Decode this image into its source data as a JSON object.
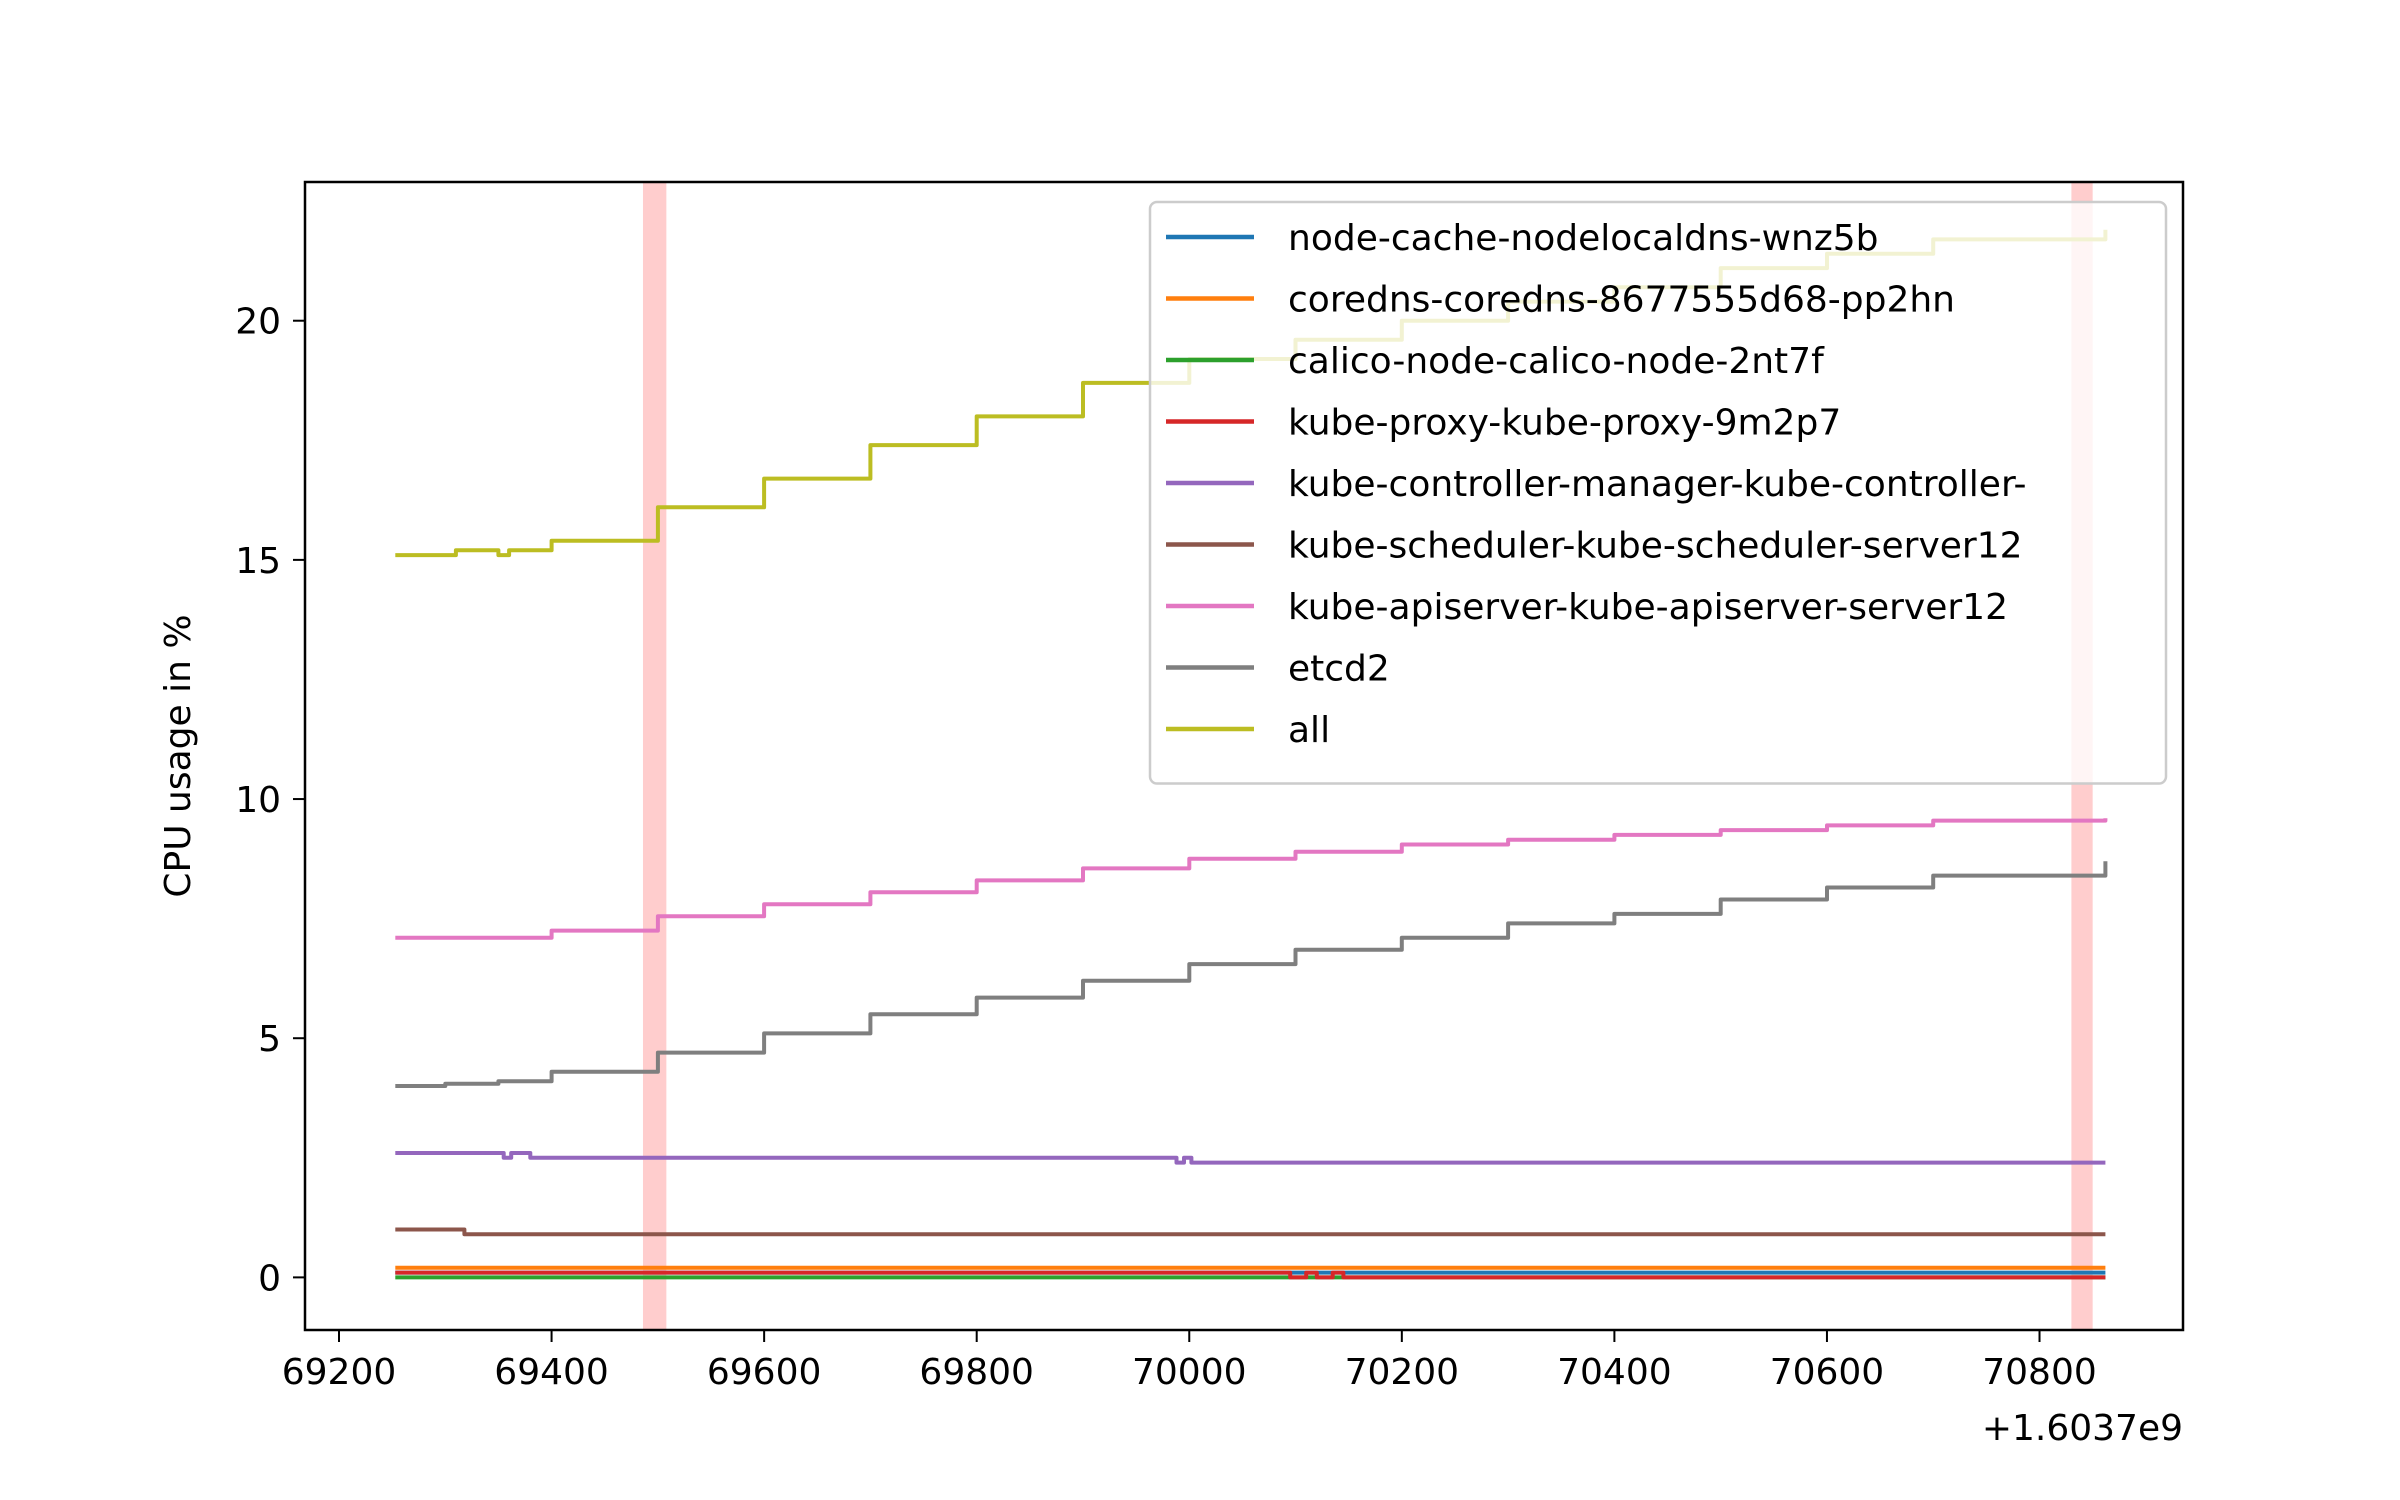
{
  "chart_data": {
    "type": "line",
    "title": "",
    "xlabel": "",
    "ylabel": "CPU usage in %",
    "x_offset_label": "+1.6037e9",
    "xlim": [
      69168,
      70935
    ],
    "ylim": [
      -1.1,
      22.9
    ],
    "x_ticks": [
      69200,
      69400,
      69600,
      69800,
      70000,
      70200,
      70400,
      70600,
      70800
    ],
    "y_ticks": [
      0,
      5,
      10,
      15,
      20
    ],
    "grid": false,
    "legend_position": "top-right",
    "highlight_bands": [
      {
        "x_start": 69486,
        "x_end": 69508,
        "color": "#ffbcbc"
      },
      {
        "x_start": 70830,
        "x_end": 70850,
        "color": "#ffbcbc"
      }
    ],
    "series": [
      {
        "name": "node-cache-nodelocaldns-wnz5b",
        "color": "#1f77b4",
        "x": [
          69253,
          70862
        ],
        "y": [
          0.1,
          0.1
        ]
      },
      {
        "name": "coredns-coredns-8677555d68-pp2hn",
        "color": "#ff7f0e",
        "x": [
          69253,
          70862
        ],
        "y": [
          0.2,
          0.2
        ]
      },
      {
        "name": "calico-node-calico-node-2nt7f",
        "color": "#2ca02c",
        "x": [
          69253,
          70862
        ],
        "y": [
          0.0,
          0.0
        ]
      },
      {
        "name": "kube-proxy-kube-proxy-9m2p7",
        "color": "#d62728",
        "x": [
          69253,
          70090,
          70095,
          70110,
          70120,
          70135,
          70145,
          70862
        ],
        "y": [
          0.1,
          0.1,
          0.0,
          0.1,
          0.0,
          0.1,
          0.0,
          0.0
        ]
      },
      {
        "name": "kube-controller-manager-kube-controller-",
        "color": "#9467bd",
        "x": [
          69253,
          69350,
          69355,
          69362,
          69380,
          69980,
          69988,
          69995,
          70002,
          70010,
          70862
        ],
        "y": [
          2.6,
          2.6,
          2.5,
          2.6,
          2.5,
          2.5,
          2.4,
          2.5,
          2.4,
          2.4,
          2.4
        ]
      },
      {
        "name": "kube-scheduler-kube-scheduler-server12",
        "color": "#8c564b",
        "x": [
          69253,
          69310,
          69318,
          70862
        ],
        "y": [
          1.0,
          1.0,
          0.9,
          0.9
        ]
      },
      {
        "name": "kube-apiserver-kube-apiserver-server12",
        "color": "#e377c2",
        "x": [
          69253,
          69350,
          69400,
          69500,
          69600,
          69700,
          69800,
          69900,
          70000,
          70100,
          70200,
          70300,
          70400,
          70500,
          70600,
          70700,
          70862
        ],
        "y": [
          7.1,
          7.1,
          7.25,
          7.55,
          7.8,
          8.05,
          8.3,
          8.55,
          8.75,
          8.9,
          9.05,
          9.15,
          9.25,
          9.35,
          9.45,
          9.55,
          9.6
        ]
      },
      {
        "name": "etcd2",
        "color": "#7f7f7f",
        "x": [
          69253,
          69300,
          69350,
          69400,
          69500,
          69600,
          69700,
          69800,
          69900,
          70000,
          70100,
          70200,
          70300,
          70400,
          70500,
          70600,
          70700,
          70862
        ],
        "y": [
          4.0,
          4.05,
          4.1,
          4.3,
          4.7,
          5.1,
          5.5,
          5.85,
          6.2,
          6.55,
          6.85,
          7.1,
          7.4,
          7.6,
          7.9,
          8.15,
          8.4,
          8.7
        ]
      },
      {
        "name": "all",
        "color": "#bcbd22",
        "x": [
          69253,
          69290,
          69310,
          69350,
          69360,
          69380,
          69400,
          69500,
          69600,
          69700,
          69800,
          69900,
          70000,
          70100,
          70200,
          70300,
          70400,
          70500,
          70600,
          70700,
          70862
        ],
        "y": [
          15.1,
          15.1,
          15.2,
          15.1,
          15.2,
          15.2,
          15.4,
          16.1,
          16.7,
          17.4,
          18.0,
          18.7,
          19.2,
          19.6,
          20.0,
          20.4,
          20.7,
          21.1,
          21.4,
          21.7,
          21.9
        ]
      }
    ]
  }
}
